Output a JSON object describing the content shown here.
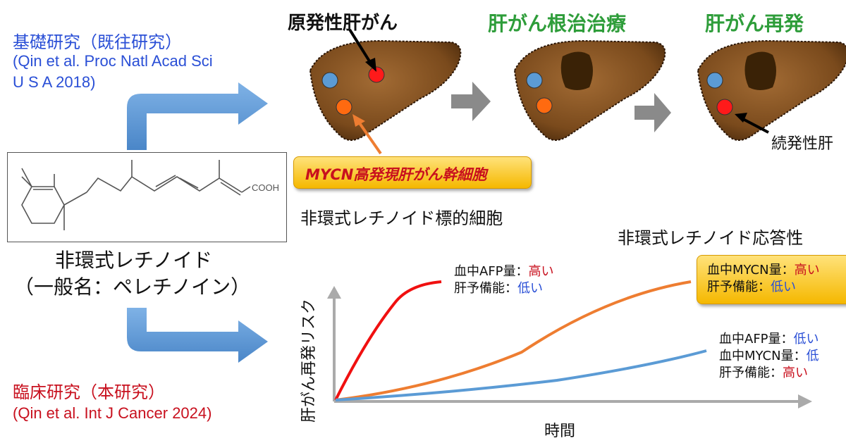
{
  "basic_research": {
    "title": "基礎研究（既往研究）",
    "ref_line1": "(Qin et al. Proc Natl Acad Sci",
    "ref_line2": "U S A 2018)"
  },
  "clinical_research": {
    "title": "臨床研究（本研究）",
    "ref": "(Qin et al. Int J Cancer 2024)"
  },
  "compound": {
    "name": "非環式レチノイド",
    "generic": "（一般名：ペレチノイン）",
    "group_label": "COOH"
  },
  "livers": {
    "stage1_title": "原発性肝がん",
    "stage2_title": "肝がん根治治療",
    "stage3_title": "肝がん再発",
    "stage3_caption": "続発性肝",
    "stem_cell_callout": "MYCN高発現肝がん幹細胞",
    "target_cells": "非環式レチノイド標的細胞"
  },
  "graph": {
    "ylabel": "肝がん再発リスク",
    "xlabel": "時間",
    "response_title": "非環式レチノイド応答性",
    "red": {
      "line1_label": "血中AFP量：",
      "line1_value": "高い",
      "line2_label": "肝予備能：",
      "line2_value": "低い"
    },
    "orange": {
      "line1_label": "血中MYCN量：",
      "line1_value": "高い",
      "line2_label": "肝予備能：",
      "line2_value": "低い"
    },
    "blue": {
      "line1_label": "血中AFP量：",
      "line1_value": "低い",
      "line2_label": "血中MYCN量：",
      "line2_value": "低",
      "line3_label": "肝予備能：",
      "line3_value": "高い"
    }
  },
  "colors": {
    "blue_text": "#2a4fd6",
    "red_text": "#c8101e",
    "green_text": "#2e9d3a",
    "arrow_blue": "#5b9bd5",
    "curve_red": "#f01010",
    "curve_orange": "#ee7d31",
    "curve_blue": "#5b9bd5",
    "liver": "#7a4a1c",
    "tumor": "#3a2206"
  }
}
